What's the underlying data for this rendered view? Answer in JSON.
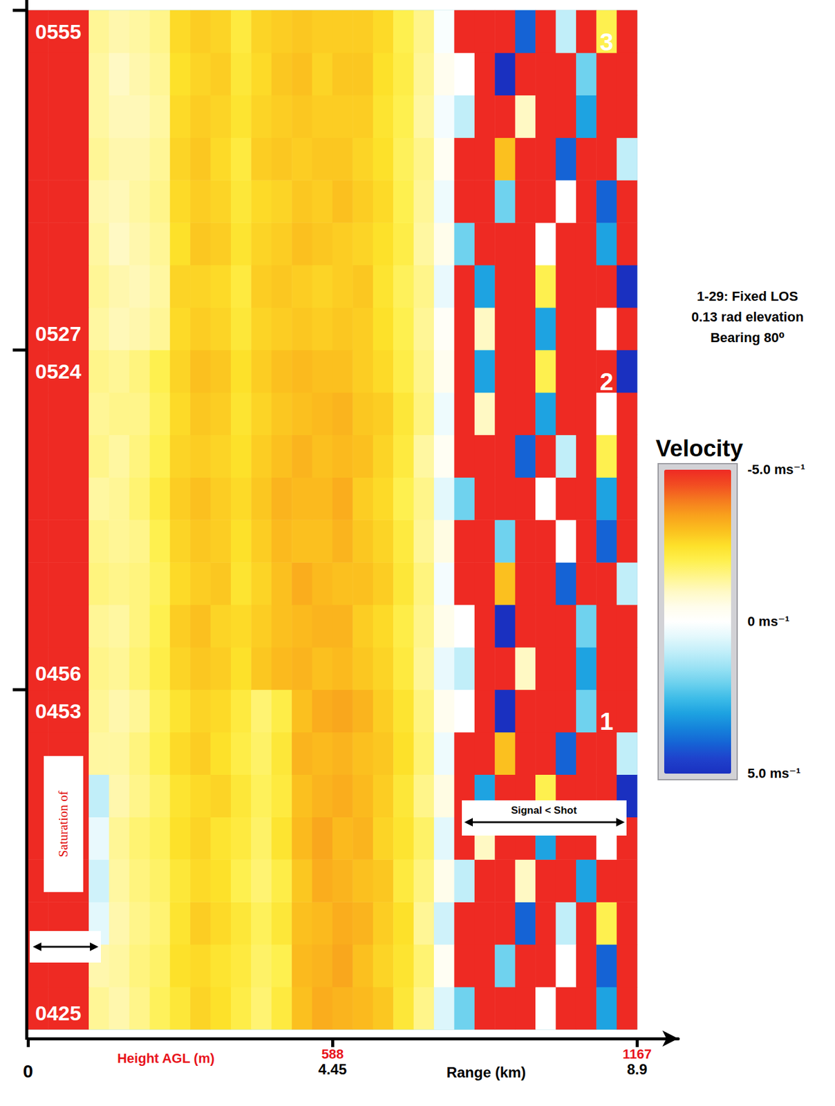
{
  "chart_data": {
    "type": "heatmap",
    "x_label": "Range (km)",
    "x2_label": "Height AGL (m)",
    "xlim": [
      0,
      9.5
    ],
    "xticks": [
      0,
      4.45,
      8.9
    ],
    "x2lim": [
      9,
      1245
    ],
    "x2ticks": [
      588,
      1167
    ],
    "cell_xlim": [
      0,
      8.9
    ],
    "tick_labels": "x",
    "info": [
      "1-29: Fixed LOS",
      "0.13 rad elevation",
      "Bearing 80⁰"
    ],
    "annotations": {
      "saturation": "Saturation of",
      "signal": "Signal < Shot"
    },
    "colorbar": {
      "title": "Velocity",
      "range": [
        -5,
        5
      ],
      "ticks": [
        {
          "value": -5,
          "label": "-5.0 ms⁻¹"
        },
        {
          "value": 0,
          "label": "0 ms⁻¹"
        },
        {
          "value": 5,
          "label": "5.0 ms⁻¹"
        }
      ]
    },
    "panels": [
      {
        "label": "1",
        "start": "0425",
        "end": "0453",
        "cells": [
          [
            -5,
            -5,
            -5,
            -1.4,
            -1.2,
            -1.5,
            -1.9,
            -2.3,
            -2.7,
            -2.5,
            -2.1,
            -1.7,
            -2.2,
            -3.0,
            -3.3,
            -3.2,
            -3.1,
            -2.9,
            -2.3,
            -1.5,
            0.6,
            2,
            -5,
            -5,
            -5,
            0,
            -5,
            -5,
            3,
            -5
          ],
          [
            -5,
            -5,
            -5,
            -1.2,
            -1.3,
            -1.6,
            -1.8,
            -2.5,
            -2.6,
            -2.4,
            -2.2,
            -1.8,
            -2.0,
            -3.1,
            -3.2,
            -3.4,
            -3.0,
            -2.7,
            -2.4,
            -1.7,
            -0.3,
            -5,
            -5,
            2,
            -5,
            -5,
            0,
            -5,
            4,
            -5
          ],
          [
            -5,
            -5,
            -5,
            0.5,
            -1.2,
            -1.5,
            -1.7,
            -2.4,
            -2.8,
            -2.6,
            -2.3,
            -1.9,
            -2.3,
            -3.0,
            -3.1,
            -3.3,
            -3.2,
            -2.8,
            -2.5,
            -1.4,
            0.8,
            -5,
            -5,
            -5,
            4,
            -5,
            1,
            -5,
            -2,
            -5
          ],
          [
            -5,
            -5,
            -5,
            0.8,
            -1.3,
            -1.6,
            -1.8,
            -2.3,
            -2.6,
            -2.5,
            -2.0,
            -1.7,
            -2.1,
            -2.9,
            -3.3,
            -3.2,
            -3.0,
            -2.9,
            -2.2,
            -1.6,
            -0.5,
            1,
            -5,
            -5,
            -1,
            -5,
            -5,
            3,
            -5,
            -5
          ],
          [
            -5,
            -5,
            -5,
            0.4,
            -1.4,
            -1.7,
            -1.9,
            -2.5,
            -2.7,
            -2.4,
            -2.2,
            -1.8,
            -2.4,
            -3.1,
            -3.4,
            -3.1,
            -3.2,
            -2.7,
            -2.4,
            -1.8,
            0.5,
            -5,
            -1,
            -5,
            -5,
            3,
            -5,
            -5,
            0,
            -5
          ],
          [
            -5,
            -5,
            -5,
            1.0,
            -1.2,
            -1.5,
            -1.8,
            -2.4,
            -2.6,
            -2.7,
            -2.3,
            -1.9,
            -2.2,
            -3.0,
            -3.2,
            -3.3,
            -3.1,
            -2.8,
            -2.3,
            -1.5,
            -0.6,
            -5,
            3,
            -5,
            -5,
            -2,
            -5,
            -5,
            -5,
            5
          ],
          [
            -5,
            -5,
            -5,
            -1.3,
            -1.3,
            -1.6,
            -2.0,
            -2.6,
            -2.8,
            -2.5,
            -2.1,
            -1.8,
            -2.3,
            -3.2,
            -3.1,
            -3.2,
            -3.0,
            -2.9,
            -2.5,
            -1.7,
            0.3,
            -5,
            -5,
            -3,
            -5,
            -5,
            4,
            -5,
            -5,
            1
          ],
          [
            -5,
            -5,
            -5,
            -1.4,
            -1.2,
            -1.4,
            -1.9,
            -2.4,
            -2.7,
            -2.6,
            -2.2,
            -1.7,
            -2.1,
            -3.0,
            -3.3,
            -3.4,
            -3.2,
            -2.8,
            -2.4,
            -1.6,
            -0.4,
            0,
            -5,
            5,
            -5,
            -5,
            -5,
            2,
            -5,
            -5
          ]
        ]
      },
      {
        "label": "2",
        "start": "0456",
        "end": "0524",
        "cells": [
          [
            -5,
            -5,
            -5,
            -1.5,
            -1.4,
            -1.7,
            -2.1,
            -2.7,
            -2.9,
            -2.8,
            -2.5,
            -2.9,
            -3.1,
            -3.2,
            -3.0,
            -3.1,
            -2.9,
            -2.7,
            -2.2,
            -1.4,
            0.4,
            1,
            -5,
            -5,
            -1,
            -5,
            -5,
            3,
            -5,
            -5
          ],
          [
            -5,
            -5,
            -5,
            -1.4,
            -1.3,
            -1.6,
            -2.0,
            -2.8,
            -3.0,
            -2.7,
            -2.6,
            -2.8,
            -3.0,
            -3.1,
            -3.2,
            -3.2,
            -2.8,
            -2.6,
            -2.1,
            -1.5,
            -0.5,
            0,
            -5,
            5,
            -5,
            -5,
            -5,
            2,
            -5,
            -5
          ],
          [
            -5,
            -5,
            -5,
            -1.6,
            -1.5,
            -1.6,
            -1.9,
            -2.6,
            -2.8,
            -2.9,
            -2.4,
            -2.7,
            -3.0,
            -3.3,
            -3.1,
            -3.0,
            -3.0,
            -2.8,
            -2.3,
            -1.6,
            0.2,
            -5,
            -5,
            -3,
            -5,
            -5,
            4,
            -5,
            -5,
            1
          ],
          [
            -5,
            -5,
            -5,
            -1.5,
            -1.4,
            -1.5,
            -2.0,
            -2.7,
            -2.9,
            -2.8,
            -2.5,
            -2.8,
            -3.1,
            -3.0,
            -3.0,
            -3.2,
            -2.9,
            -2.7,
            -2.2,
            -1.4,
            -0.6,
            -5,
            -5,
            2,
            -5,
            -5,
            0,
            -5,
            4,
            -5
          ],
          [
            -5,
            -5,
            -5,
            -1.3,
            -1.4,
            -1.7,
            -2.2,
            -2.8,
            -3.0,
            -2.8,
            -2.6,
            -2.9,
            -3.2,
            -3.1,
            -3.1,
            -3.3,
            -2.8,
            -2.6,
            -2.0,
            -1.5,
            0.5,
            2,
            -5,
            -5,
            -5,
            0,
            -5,
            -5,
            3,
            -5
          ],
          [
            -5,
            -5,
            -5,
            -1.5,
            -1.3,
            -1.6,
            -2.0,
            -2.7,
            -2.8,
            -2.7,
            -2.5,
            -2.8,
            -3.0,
            -3.2,
            -3.0,
            -3.1,
            -3.0,
            -2.7,
            -2.2,
            -1.3,
            -0.3,
            -5,
            -5,
            -5,
            4,
            -5,
            1,
            -5,
            -2,
            -5
          ],
          [
            -5,
            -5,
            -5,
            -1.4,
            -1.5,
            -1.5,
            -1.9,
            -2.6,
            -2.9,
            -2.8,
            -2.4,
            -2.7,
            -2.9,
            -3.0,
            -3.1,
            -3.2,
            -2.9,
            -2.8,
            -2.3,
            -1.6,
            0.3,
            -5,
            -1,
            -5,
            -5,
            3,
            -5,
            -5,
            0,
            -5
          ],
          [
            -5,
            -5,
            -5,
            -1.5,
            -1.4,
            -1.6,
            -2.0,
            -2.7,
            -3.0,
            -2.9,
            -2.5,
            -2.8,
            -3.0,
            -3.1,
            -3.0,
            -3.0,
            -2.8,
            -2.6,
            -2.1,
            -1.5,
            -0.4,
            -5,
            3,
            -5,
            -5,
            -2,
            -5,
            -5,
            -5,
            5
          ]
        ]
      },
      {
        "label": "3",
        "start": "0527",
        "end": "0555",
        "cells": [
          [
            -5,
            -5,
            -5,
            -1.3,
            -1.1,
            -1.2,
            -1.4,
            -2.6,
            -2.8,
            -2.7,
            -2.3,
            -2.7,
            -2.8,
            -2.9,
            -2.8,
            -2.9,
            -2.8,
            -2.5,
            -2.0,
            -1.4,
            -0.2,
            -5,
            -1,
            -5,
            -5,
            3,
            -5,
            -5,
            0,
            -5
          ],
          [
            -5,
            -5,
            -5,
            -1.4,
            -1.2,
            -1.1,
            -1.3,
            -2.7,
            -2.7,
            -2.6,
            -2.2,
            -2.8,
            -2.9,
            -2.8,
            -2.7,
            -2.8,
            -2.9,
            -2.4,
            -1.9,
            -1.5,
            0.4,
            -5,
            3,
            -5,
            -5,
            -2,
            -5,
            -5,
            -5,
            5
          ],
          [
            -5,
            -5,
            -5,
            -1.3,
            -1.0,
            -1.2,
            -1.4,
            -2.5,
            -2.9,
            -2.8,
            -2.4,
            -2.7,
            -2.8,
            -3.0,
            -2.9,
            -2.8,
            -2.7,
            -2.5,
            -2.1,
            -1.3,
            -0.5,
            2,
            -5,
            -5,
            -5,
            0,
            -5,
            -5,
            3,
            -5
          ],
          [
            -5,
            -5,
            -5,
            -1.2,
            -1.1,
            -1.3,
            -1.5,
            -2.6,
            -2.8,
            -2.7,
            -2.3,
            -2.6,
            -2.7,
            -2.9,
            -2.8,
            -3.0,
            -2.8,
            -2.6,
            -2.0,
            -1.4,
            0.3,
            -5,
            -5,
            2,
            -5,
            -5,
            0,
            -5,
            4,
            -5
          ],
          [
            -5,
            -5,
            -5,
            -1.4,
            -1.2,
            -1.2,
            -1.4,
            -2.7,
            -2.9,
            -2.6,
            -2.2,
            -2.8,
            -2.9,
            -2.8,
            -2.9,
            -2.9,
            -2.7,
            -2.5,
            -1.9,
            -1.5,
            -0.3,
            -5,
            -5,
            -3,
            -5,
            -5,
            4,
            -5,
            -5,
            1
          ],
          [
            -5,
            -5,
            -5,
            -1.3,
            -1.1,
            -1.1,
            -1.3,
            -2.6,
            -2.8,
            -2.7,
            -2.4,
            -2.7,
            -2.8,
            -2.9,
            -2.8,
            -2.8,
            -2.8,
            -2.4,
            -2.0,
            -1.3,
            0.2,
            1,
            -5,
            -5,
            -1,
            -5,
            -5,
            3,
            -5,
            -5
          ],
          [
            -5,
            -5,
            -5,
            -1.3,
            -1.0,
            -1.2,
            -1.4,
            -2.5,
            -2.7,
            -2.8,
            -2.3,
            -2.6,
            -2.9,
            -3.0,
            -2.7,
            -2.9,
            -2.9,
            -2.5,
            -2.1,
            -1.4,
            -0.4,
            0,
            -5,
            5,
            -5,
            -5,
            -5,
            2,
            -5,
            -5
          ],
          [
            -5,
            -5,
            -5,
            -1.4,
            -1.2,
            -1.3,
            -1.5,
            -2.6,
            -2.8,
            -2.7,
            -2.2,
            -2.7,
            -2.8,
            -2.9,
            -2.8,
            -2.8,
            -2.8,
            -2.6,
            -2.0,
            -1.5,
            0.1,
            -5,
            -5,
            -5,
            4,
            -5,
            1,
            -5,
            -2,
            -5
          ]
        ]
      }
    ]
  }
}
